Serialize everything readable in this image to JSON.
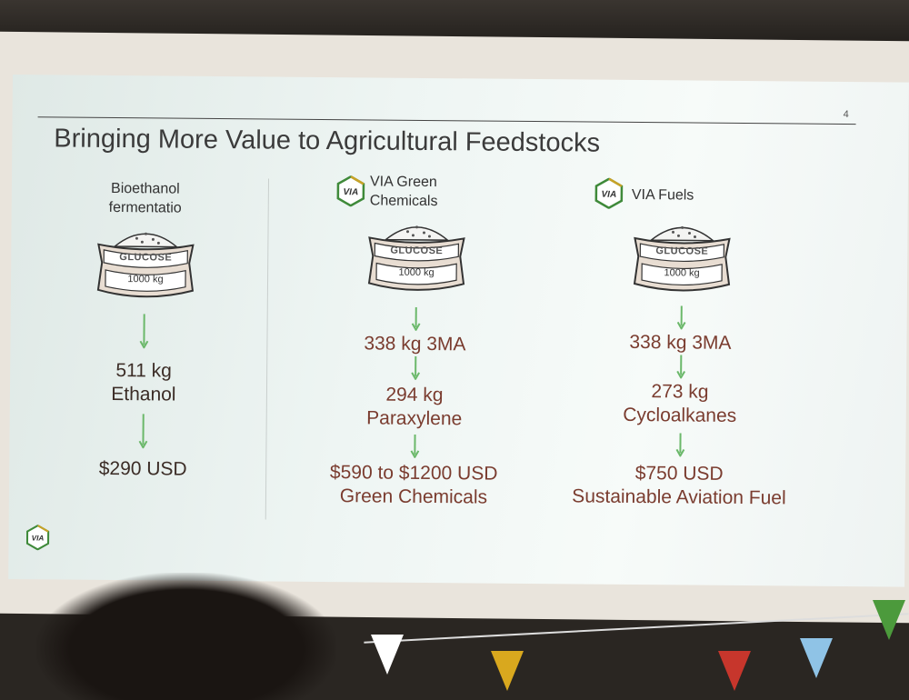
{
  "slide": {
    "page_number": "4",
    "title": "Bringing More Value to Agricultural Feedstocks",
    "columns": [
      {
        "heading": [
          "Bioethanol",
          "fermentatio"
        ],
        "sack": {
          "label": "GLUCOSE",
          "amount": "1000 kg"
        },
        "steps": [
          "511 kg",
          "Ethanol"
        ],
        "result": "$290 USD"
      },
      {
        "heading": [
          "VIA Green",
          "Chemicals"
        ],
        "sack": {
          "label": "GLUCOSE",
          "amount": "1000 kg"
        },
        "steps": [
          "338 kg 3MA",
          "294 kg",
          "Paraxylene"
        ],
        "result": [
          "$590 to $1200 USD",
          "Green Chemicals"
        ]
      },
      {
        "heading": [
          "VIA Fuels"
        ],
        "sack": {
          "label": "GLUCOSE",
          "amount": "1000 kg"
        },
        "steps": [
          "338 kg 3MA",
          "273 kg",
          "Cycloalkanes"
        ],
        "result": [
          "$750 USD",
          "Sustainable Aviation Fuel"
        ]
      }
    ],
    "logo_text": "VIA"
  },
  "colors": {
    "arrow": "#6bb86a",
    "value_text": "#3b2c26",
    "logo_green": "#3f8a3a",
    "logo_gold": "#c9a227"
  }
}
